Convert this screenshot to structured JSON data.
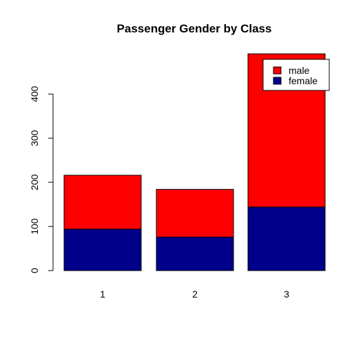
{
  "chart_data": {
    "type": "bar",
    "stacked": true,
    "title": "Passenger Gender by Class",
    "xlabel": "",
    "ylabel": "",
    "categories": [
      "1",
      "2",
      "3"
    ],
    "series": [
      {
        "name": "female",
        "values": [
          94,
          76,
          144
        ],
        "color": "#00008b"
      },
      {
        "name": "male",
        "values": [
          122,
          108,
          347
        ],
        "color": "#ff0000"
      }
    ],
    "ylim": [
      0,
      491
    ],
    "yticks": [
      0,
      100,
      200,
      300,
      400
    ],
    "legend": {
      "position": "top-right",
      "entries": [
        {
          "label": "male",
          "color": "#ff0000"
        },
        {
          "label": "female",
          "color": "#00008b"
        }
      ]
    },
    "grid": false
  }
}
